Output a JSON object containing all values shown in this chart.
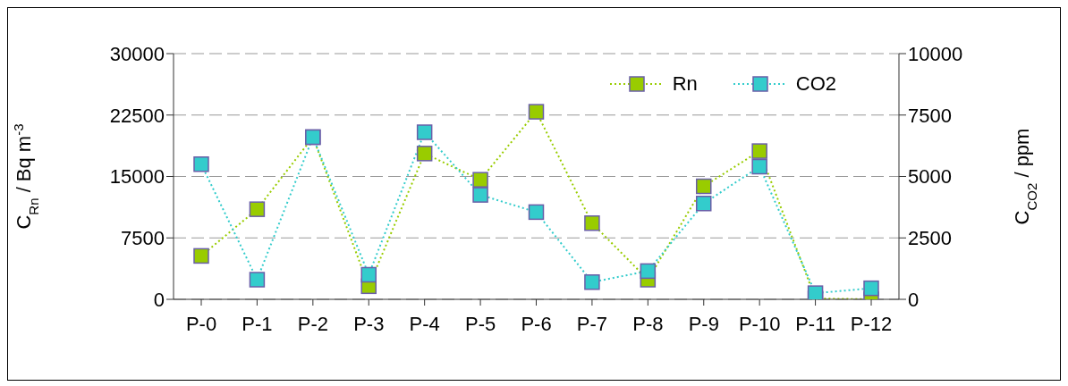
{
  "chart_data": {
    "type": "line",
    "ylabel": "C$_{Rn}$ / Bq m$^{-3}$",
    "y2label": "C$_{CO2}$ / ppm",
    "categories": [
      "P-0",
      "P-1",
      "P-2",
      "P-3",
      "P-4",
      "P-5",
      "P-6",
      "P-7",
      "P-8",
      "P-9",
      "P-10",
      "P-11",
      "P-12"
    ],
    "series": [
      {
        "name": "Rn",
        "color": "#99cc00",
        "values": [
          5300,
          11000,
          19800,
          1600,
          17800,
          14600,
          22900,
          9300,
          2400,
          13800,
          18100,
          100,
          0
        ]
      },
      {
        "name": "CO2",
        "color": "#33cccc",
        "axis": "y2",
        "values": [
          5500,
          800,
          6600,
          1000,
          6800,
          4250,
          3550,
          700,
          1150,
          3900,
          5400,
          250,
          450
        ]
      }
    ],
    "ylim": [
      0,
      30000
    ],
    "yticks": [
      0,
      7500,
      15000,
      22500,
      30000
    ],
    "y2lim": [
      0,
      10000
    ],
    "y2ticks": [
      0,
      2500,
      5000,
      7500,
      10000
    ],
    "grid": "y",
    "legend": "top right",
    "marker": "square",
    "line_style": "dotted"
  }
}
